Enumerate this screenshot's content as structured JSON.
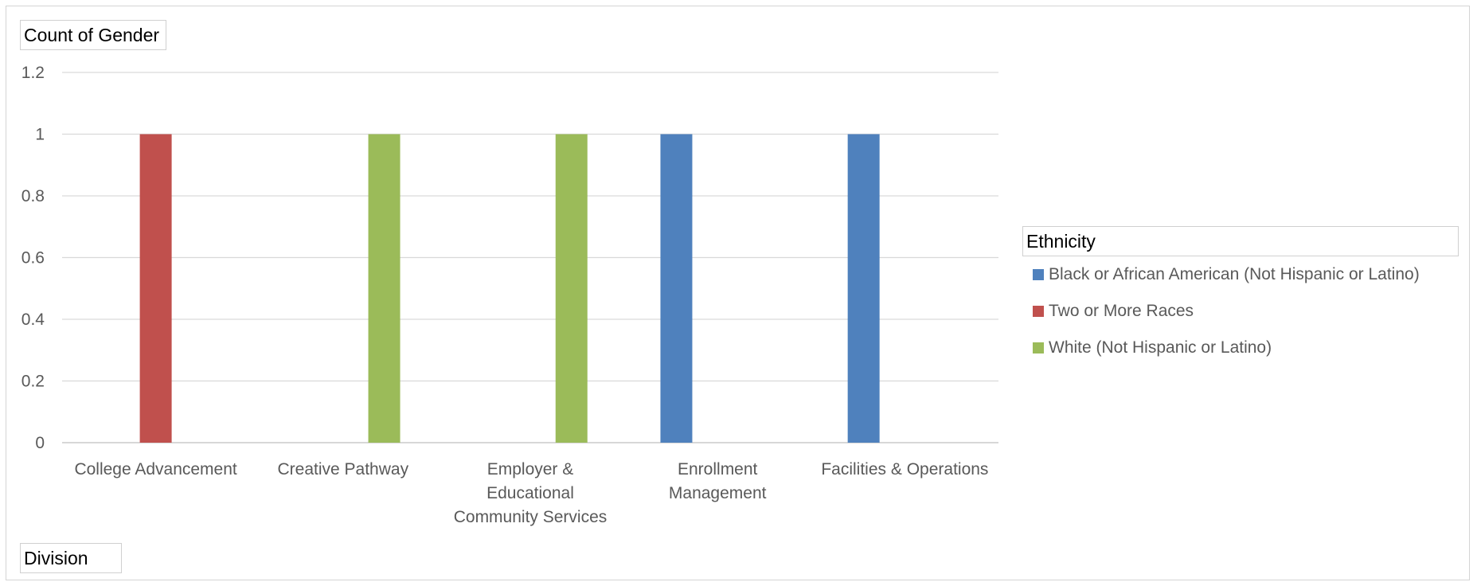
{
  "chart_data": {
    "type": "bar",
    "value_field": "Count of Gender",
    "axis_field": "Division",
    "legend_title": "Ethnicity",
    "categories": [
      "College Advancement",
      "Creative Pathway",
      "Employer & Educational Community Services",
      "Enrollment Management",
      "Facilities & Operations"
    ],
    "category_label_lines": [
      [
        "College Advancement"
      ],
      [
        "Creative Pathway"
      ],
      [
        "Employer &",
        "Educational",
        "Community Services"
      ],
      [
        "Enrollment",
        "Management"
      ],
      [
        "Facilities & Operations"
      ]
    ],
    "series": [
      {
        "name": "Black or African American (Not Hispanic or Latino)",
        "color": "#4F81BD",
        "values": [
          null,
          null,
          null,
          1,
          1
        ]
      },
      {
        "name": "Two or More Races",
        "color": "#C0504D",
        "values": [
          1,
          null,
          null,
          null,
          null
        ]
      },
      {
        "name": "White (Not Hispanic or Latino)",
        "color": "#9BBB59",
        "values": [
          null,
          1,
          1,
          null,
          null
        ]
      }
    ],
    "ylim": [
      0,
      1.2
    ],
    "yticks": [
      "0",
      "0.2",
      "0.4",
      "0.6",
      "0.8",
      "1",
      "1.2"
    ],
    "grid": true,
    "legend_position": "right"
  }
}
